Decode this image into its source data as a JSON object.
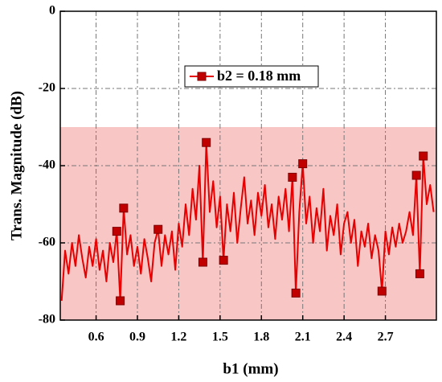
{
  "chart_data": {
    "type": "line",
    "xlabel": "b1 (mm)",
    "ylabel": "Trans. Magnitude (dB)",
    "x": [
      0.35,
      0.375,
      0.4,
      0.425,
      0.45,
      0.475,
      0.5,
      0.525,
      0.55,
      0.575,
      0.6,
      0.625,
      0.65,
      0.675,
      0.7,
      0.725,
      0.75,
      0.775,
      0.8,
      0.825,
      0.85,
      0.875,
      0.9,
      0.925,
      0.95,
      0.975,
      1.0,
      1.025,
      1.05,
      1.075,
      1.1,
      1.125,
      1.15,
      1.175,
      1.2,
      1.225,
      1.25,
      1.275,
      1.3,
      1.325,
      1.35,
      1.375,
      1.4,
      1.425,
      1.45,
      1.475,
      1.5,
      1.525,
      1.55,
      1.575,
      1.6,
      1.625,
      1.65,
      1.675,
      1.7,
      1.725,
      1.75,
      1.775,
      1.8,
      1.825,
      1.85,
      1.875,
      1.9,
      1.925,
      1.95,
      1.975,
      2.0,
      2.025,
      2.05,
      2.075,
      2.1,
      2.125,
      2.15,
      2.175,
      2.2,
      2.225,
      2.25,
      2.275,
      2.3,
      2.325,
      2.35,
      2.375,
      2.4,
      2.425,
      2.45,
      2.475,
      2.5,
      2.525,
      2.55,
      2.575,
      2.6,
      2.625,
      2.65,
      2.675,
      2.7,
      2.725,
      2.75,
      2.775,
      2.8,
      2.825,
      2.85,
      2.875,
      2.9,
      2.925,
      2.95,
      2.975,
      3.0,
      3.025,
      3.05
    ],
    "series": [
      {
        "name": "b2 = 0.18 mm",
        "color": "#e60000",
        "marker_color": "#c00000",
        "values": [
          -75,
          -62,
          -68,
          -60,
          -66,
          -58,
          -64,
          -69,
          -61,
          -66,
          -59,
          -67,
          -62,
          -70,
          -60,
          -65,
          -57,
          -75,
          -51,
          -63,
          -58,
          -66,
          -61,
          -68,
          -59,
          -64,
          -70,
          -60,
          -56.5,
          -66,
          -58,
          -63,
          -57,
          -67,
          -55,
          -61,
          -50,
          -58,
          -46,
          -54,
          -40,
          -65,
          -34,
          -52,
          -44,
          -56,
          -48,
          -64.5,
          -50,
          -57,
          -47,
          -60,
          -51,
          -43,
          -55,
          -49,
          -58,
          -47,
          -53,
          -45,
          -56,
          -50,
          -59,
          -48,
          -54,
          -46,
          -57,
          -43,
          -73,
          -52,
          -39.5,
          -55,
          -48,
          -60,
          -51,
          -57,
          -46,
          -62,
          -53,
          -58,
          -50,
          -63,
          -55,
          -52,
          -60,
          -54,
          -66,
          -57,
          -61,
          -55,
          -64,
          -58,
          -62,
          -72.5,
          -57,
          -63,
          -56,
          -61,
          -55,
          -60,
          -57,
          -52,
          -58,
          -42.5,
          -68,
          -37.5,
          -50,
          -45,
          -52
        ],
        "markers": {
          "x": [
            0.75,
            0.775,
            0.8,
            1.05,
            1.375,
            1.4,
            1.525,
            2.025,
            2.05,
            2.1,
            2.675,
            2.925,
            2.95,
            2.975
          ],
          "values": [
            -57,
            -75,
            -51,
            -56.5,
            -65,
            -34,
            -64.5,
            -43,
            -73,
            -39.5,
            -72.5,
            -42.5,
            -68,
            -37.5
          ]
        }
      }
    ],
    "xlim": [
      0.34,
      3.07
    ],
    "xticks": [
      0.6,
      0.9,
      1.2,
      1.5,
      1.8,
      2.1,
      2.4,
      2.7
    ],
    "ylim": [
      -80,
      0
    ],
    "yticks": [
      0,
      -20,
      -40,
      -60,
      -80
    ],
    "grid": true,
    "shaded_region": {
      "ylim": [
        -80,
        -30
      ],
      "color": "#f9c6c6"
    }
  }
}
